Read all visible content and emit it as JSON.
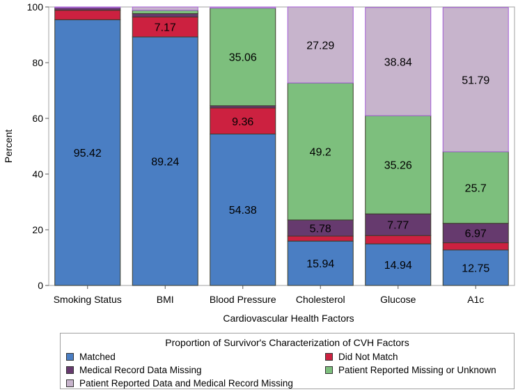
{
  "chart_data": {
    "type": "bar",
    "stacked": true,
    "title": "",
    "xlabel": "Cardiovascular Health Factors",
    "ylabel": "Percent",
    "ylim": [
      0,
      100
    ],
    "yticks": [
      0,
      20,
      40,
      60,
      80,
      100
    ],
    "categories": [
      "Smoking Status",
      "BMI",
      "Blood Pressure",
      "Cholesterol",
      "Glucose",
      "A1c"
    ],
    "series": [
      {
        "name": "Matched",
        "color": "#4a7ec3",
        "values": [
          95.42,
          89.24,
          54.38,
          15.94,
          14.94,
          12.75
        ],
        "labels": [
          "95.42",
          "89.24",
          "54.38",
          "15.94",
          "14.94",
          "12.75"
        ]
      },
      {
        "name": "Did Not Match",
        "color": "#cc2140",
        "values": [
          3.4,
          7.17,
          9.36,
          1.8,
          3.0,
          2.6
        ],
        "labels": [
          "",
          "7.17",
          "9.36",
          "",
          "",
          ""
        ]
      },
      {
        "name": "Medical Record Data Missing",
        "color": "#663a6e",
        "values": [
          0.9,
          1.2,
          0.8,
          5.78,
          7.77,
          6.97
        ],
        "labels": [
          "",
          "",
          "",
          "5.78",
          "7.77",
          "6.97"
        ]
      },
      {
        "name": "Patient Reported Missing or Unknown",
        "color": "#7dbf7d",
        "values": [
          0.0,
          1.2,
          35.06,
          49.2,
          35.26,
          25.7
        ],
        "labels": [
          "",
          "",
          "35.06",
          "49.2",
          "35.26",
          "25.7"
        ]
      },
      {
        "name": "Patient Reported Data and Medical Record Missing",
        "color": "#c7b4cc",
        "values": [
          0.28,
          1.19,
          0.4,
          27.29,
          38.84,
          51.79
        ],
        "labels": [
          "",
          "",
          "",
          "27.29",
          "38.84",
          "51.79"
        ]
      }
    ],
    "legend": {
      "title": "Proportion of Survivor's Characterization of CVH Factors",
      "position": "bottom"
    }
  }
}
